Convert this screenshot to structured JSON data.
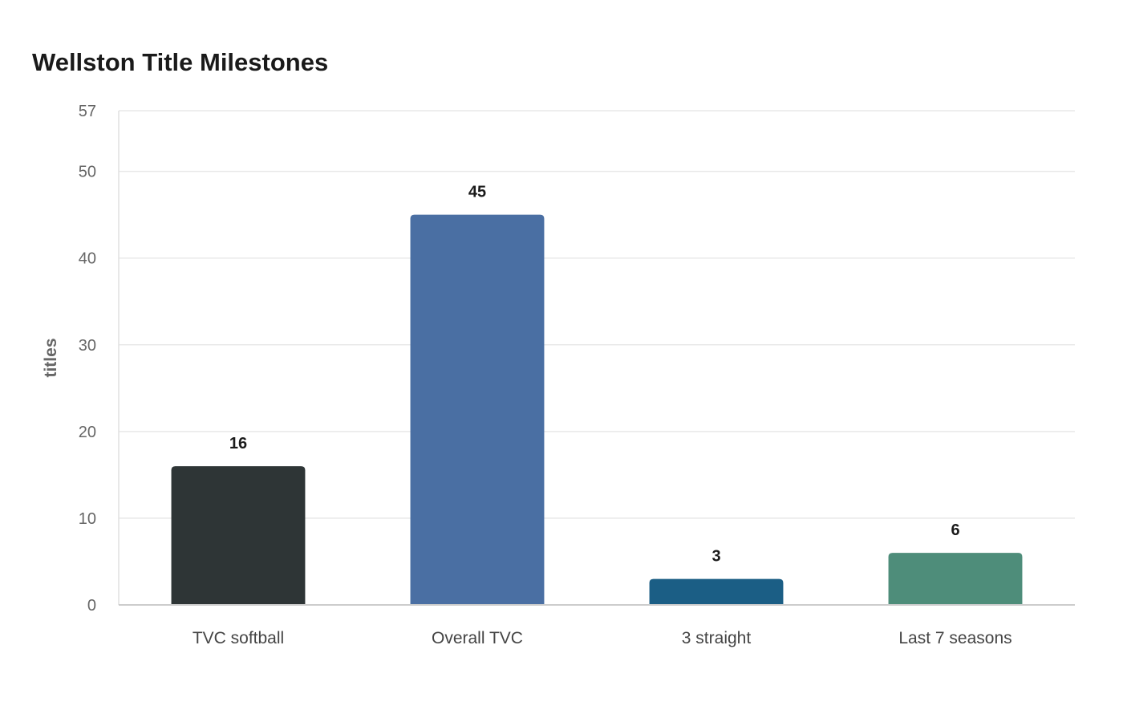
{
  "chart_data": {
    "type": "bar",
    "title": "Wellston Title Milestones",
    "xlabel": "",
    "ylabel": "titles",
    "categories": [
      "TVC softball",
      "Overall TVC",
      "3 straight",
      "Last 7 seasons"
    ],
    "values": [
      16,
      45,
      3,
      6
    ],
    "colors": [
      "#2e3536",
      "#4a6fa3",
      "#1b5e85",
      "#4e8d7a"
    ],
    "ylim": [
      0,
      57
    ],
    "yticks": [
      0,
      10,
      20,
      30,
      40,
      50,
      57
    ],
    "grid": true,
    "legend": "none"
  }
}
